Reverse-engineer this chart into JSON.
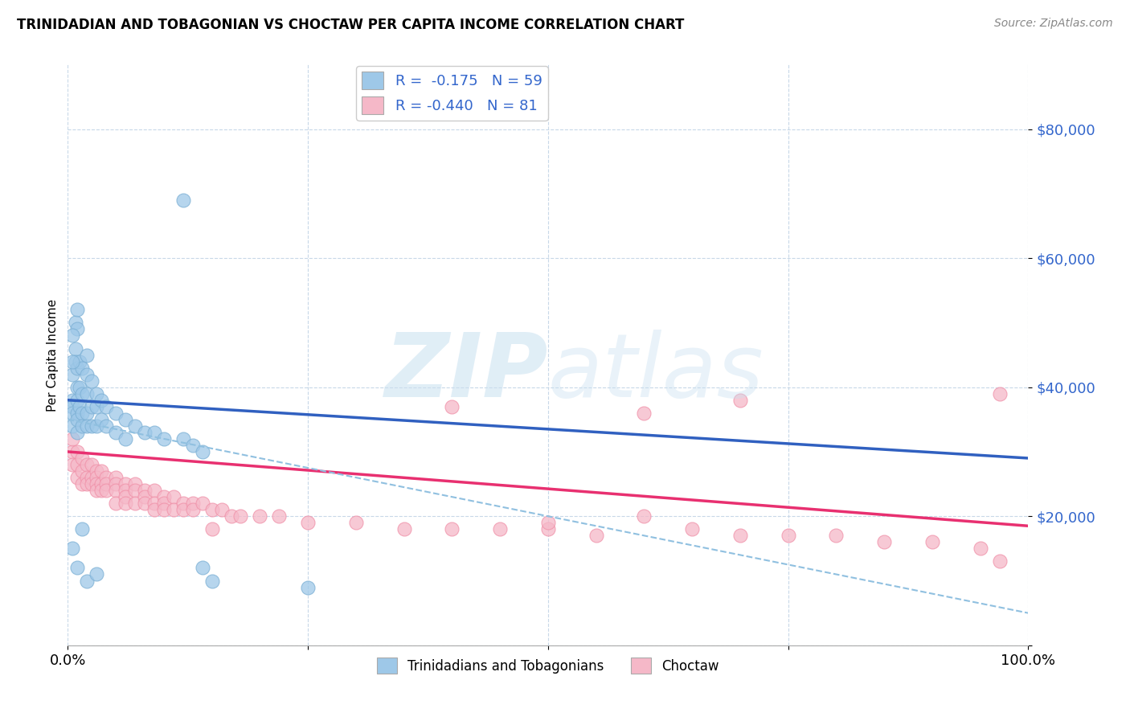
{
  "title": "TRINIDADIAN AND TOBAGONIAN VS CHOCTAW PER CAPITA INCOME CORRELATION CHART",
  "source": "Source: ZipAtlas.com",
  "ylabel": "Per Capita Income",
  "yticks": [
    0,
    20000,
    40000,
    60000,
    80000
  ],
  "ytick_labels": [
    "",
    "$20,000",
    "$40,000",
    "$60,000",
    "$80,000"
  ],
  "xlim": [
    0,
    1
  ],
  "ylim": [
    0,
    90000
  ],
  "blue_color": "#9EC8E8",
  "pink_color": "#F5B8C8",
  "blue_edge": "#7BAFD4",
  "pink_edge": "#F090A8",
  "trendline_blue": "#3060C0",
  "trendline_pink": "#E83070",
  "trendline_dashed": "#90C0E0",
  "label_color": "#3366CC",
  "blue_scatter": [
    [
      0.005,
      38000
    ],
    [
      0.005,
      37000
    ],
    [
      0.005,
      42000
    ],
    [
      0.005,
      36000
    ],
    [
      0.005,
      34000
    ],
    [
      0.008,
      46000
    ],
    [
      0.008,
      44000
    ],
    [
      0.008,
      50000
    ],
    [
      0.01,
      43000
    ],
    [
      0.01,
      40000
    ],
    [
      0.01,
      38000
    ],
    [
      0.01,
      36000
    ],
    [
      0.01,
      35000
    ],
    [
      0.01,
      33000
    ],
    [
      0.012,
      44000
    ],
    [
      0.012,
      40000
    ],
    [
      0.012,
      37000
    ],
    [
      0.015,
      43000
    ],
    [
      0.015,
      39000
    ],
    [
      0.015,
      36000
    ],
    [
      0.015,
      34000
    ],
    [
      0.02,
      45000
    ],
    [
      0.02,
      42000
    ],
    [
      0.02,
      39000
    ],
    [
      0.02,
      36000
    ],
    [
      0.02,
      34000
    ],
    [
      0.025,
      41000
    ],
    [
      0.025,
      37000
    ],
    [
      0.025,
      34000
    ],
    [
      0.03,
      39000
    ],
    [
      0.03,
      37000
    ],
    [
      0.03,
      34000
    ],
    [
      0.035,
      38000
    ],
    [
      0.035,
      35000
    ],
    [
      0.04,
      37000
    ],
    [
      0.04,
      34000
    ],
    [
      0.05,
      36000
    ],
    [
      0.05,
      33000
    ],
    [
      0.06,
      35000
    ],
    [
      0.06,
      32000
    ],
    [
      0.07,
      34000
    ],
    [
      0.08,
      33000
    ],
    [
      0.09,
      33000
    ],
    [
      0.1,
      32000
    ],
    [
      0.12,
      32000
    ],
    [
      0.13,
      31000
    ],
    [
      0.14,
      30000
    ],
    [
      0.005,
      15000
    ],
    [
      0.01,
      12000
    ],
    [
      0.015,
      18000
    ],
    [
      0.02,
      10000
    ],
    [
      0.03,
      11000
    ],
    [
      0.12,
      69000
    ],
    [
      0.01,
      52000
    ],
    [
      0.01,
      49000
    ],
    [
      0.005,
      48000
    ],
    [
      0.005,
      44000
    ],
    [
      0.15,
      10000
    ],
    [
      0.25,
      9000
    ],
    [
      0.14,
      12000
    ]
  ],
  "pink_scatter": [
    [
      0.005,
      30000
    ],
    [
      0.005,
      28000
    ],
    [
      0.005,
      32000
    ],
    [
      0.01,
      30000
    ],
    [
      0.01,
      28000
    ],
    [
      0.01,
      26000
    ],
    [
      0.015,
      29000
    ],
    [
      0.015,
      27000
    ],
    [
      0.015,
      25000
    ],
    [
      0.02,
      28000
    ],
    [
      0.02,
      26000
    ],
    [
      0.02,
      25000
    ],
    [
      0.025,
      28000
    ],
    [
      0.025,
      26000
    ],
    [
      0.025,
      25000
    ],
    [
      0.03,
      27000
    ],
    [
      0.03,
      26000
    ],
    [
      0.03,
      25000
    ],
    [
      0.03,
      24000
    ],
    [
      0.035,
      27000
    ],
    [
      0.035,
      25000
    ],
    [
      0.035,
      24000
    ],
    [
      0.04,
      26000
    ],
    [
      0.04,
      25000
    ],
    [
      0.04,
      24000
    ],
    [
      0.05,
      26000
    ],
    [
      0.05,
      25000
    ],
    [
      0.05,
      24000
    ],
    [
      0.05,
      22000
    ],
    [
      0.06,
      25000
    ],
    [
      0.06,
      24000
    ],
    [
      0.06,
      23000
    ],
    [
      0.06,
      22000
    ],
    [
      0.07,
      25000
    ],
    [
      0.07,
      24000
    ],
    [
      0.07,
      22000
    ],
    [
      0.08,
      24000
    ],
    [
      0.08,
      23000
    ],
    [
      0.08,
      22000
    ],
    [
      0.09,
      24000
    ],
    [
      0.09,
      22000
    ],
    [
      0.09,
      21000
    ],
    [
      0.1,
      23000
    ],
    [
      0.1,
      22000
    ],
    [
      0.1,
      21000
    ],
    [
      0.11,
      23000
    ],
    [
      0.11,
      21000
    ],
    [
      0.12,
      22000
    ],
    [
      0.12,
      21000
    ],
    [
      0.13,
      22000
    ],
    [
      0.13,
      21000
    ],
    [
      0.14,
      22000
    ],
    [
      0.15,
      21000
    ],
    [
      0.15,
      18000
    ],
    [
      0.16,
      21000
    ],
    [
      0.17,
      20000
    ],
    [
      0.18,
      20000
    ],
    [
      0.2,
      20000
    ],
    [
      0.22,
      20000
    ],
    [
      0.25,
      19000
    ],
    [
      0.3,
      19000
    ],
    [
      0.35,
      18000
    ],
    [
      0.4,
      18000
    ],
    [
      0.4,
      37000
    ],
    [
      0.45,
      18000
    ],
    [
      0.5,
      18000
    ],
    [
      0.5,
      19000
    ],
    [
      0.55,
      17000
    ],
    [
      0.6,
      20000
    ],
    [
      0.6,
      36000
    ],
    [
      0.65,
      18000
    ],
    [
      0.7,
      17000
    ],
    [
      0.7,
      38000
    ],
    [
      0.75,
      17000
    ],
    [
      0.8,
      17000
    ],
    [
      0.85,
      16000
    ],
    [
      0.9,
      16000
    ],
    [
      0.95,
      15000
    ],
    [
      0.97,
      39000
    ],
    [
      0.97,
      13000
    ]
  ],
  "blue_trend_x": [
    0.0,
    1.0
  ],
  "blue_trend_y": [
    38000,
    29000
  ],
  "pink_trend_x": [
    0.0,
    1.0
  ],
  "pink_trend_y": [
    30000,
    18500
  ],
  "dashed_trend_x": [
    0.0,
    1.0
  ],
  "dashed_trend_y": [
    35000,
    5000
  ],
  "legend_entries": [
    {
      "label": "Trinidadians and Tobagonians",
      "color": "#9EC8E8"
    },
    {
      "label": "Choctaw",
      "color": "#F5B8C8"
    }
  ]
}
